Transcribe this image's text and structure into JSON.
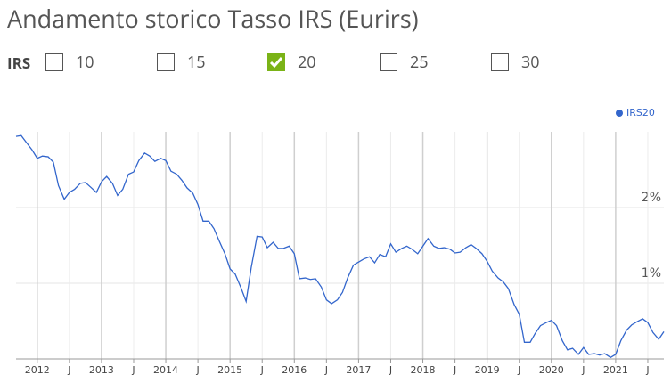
{
  "page": {
    "title": "Andamento storico Tasso IRS (Eurirs)",
    "selector_label": "IRS",
    "options": [
      {
        "label": "10",
        "checked": false
      },
      {
        "label": "15",
        "checked": false
      },
      {
        "label": "20",
        "checked": true
      },
      {
        "label": "25",
        "checked": false
      },
      {
        "label": "30",
        "checked": false
      }
    ]
  },
  "chart_data": {
    "type": "line",
    "grid": true,
    "legend": "top-right",
    "x": [
      2011.67,
      2011.75,
      2011.83,
      2011.92,
      2012.0,
      2012.08,
      2012.17,
      2012.25,
      2012.33,
      2012.42,
      2012.5,
      2012.58,
      2012.67,
      2012.75,
      2012.83,
      2012.92,
      2013.0,
      2013.08,
      2013.17,
      2013.25,
      2013.33,
      2013.42,
      2013.5,
      2013.58,
      2013.67,
      2013.75,
      2013.83,
      2013.92,
      2014.0,
      2014.08,
      2014.17,
      2014.25,
      2014.33,
      2014.42,
      2014.5,
      2014.58,
      2014.67,
      2014.75,
      2014.83,
      2014.92,
      2015.0,
      2015.08,
      2015.17,
      2015.25,
      2015.33,
      2015.42,
      2015.5,
      2015.58,
      2015.67,
      2015.75,
      2015.83,
      2015.92,
      2016.0,
      2016.08,
      2016.17,
      2016.25,
      2016.33,
      2016.42,
      2016.5,
      2016.58,
      2016.67,
      2016.75,
      2016.83,
      2016.92,
      2017.0,
      2017.08,
      2017.17,
      2017.25,
      2017.33,
      2017.42,
      2017.5,
      2017.58,
      2017.67,
      2017.75,
      2017.83,
      2017.92,
      2018.0,
      2018.08,
      2018.17,
      2018.25,
      2018.33,
      2018.42,
      2018.5,
      2018.58,
      2018.67,
      2018.75,
      2018.83,
      2018.92,
      2019.0,
      2019.08,
      2019.17,
      2019.25,
      2019.33,
      2019.42,
      2019.5,
      2019.58,
      2019.67,
      2019.75,
      2019.83,
      2019.92,
      2020.0,
      2020.08,
      2020.17,
      2020.25,
      2020.33,
      2020.42,
      2020.5,
      2020.58,
      2020.67,
      2020.75,
      2020.83,
      2020.92,
      2021.0,
      2021.08,
      2021.17,
      2021.25,
      2021.33,
      2021.42,
      2021.5,
      2021.58,
      2021.67,
      2021.75
    ],
    "series": [
      {
        "name": "IRS20",
        "color": "#3366cc",
        "values": [
          2.94,
          2.95,
          2.86,
          2.76,
          2.65,
          2.68,
          2.67,
          2.6,
          2.29,
          2.11,
          2.2,
          2.24,
          2.32,
          2.33,
          2.27,
          2.2,
          2.34,
          2.41,
          2.32,
          2.16,
          2.24,
          2.44,
          2.47,
          2.62,
          2.72,
          2.68,
          2.61,
          2.65,
          2.62,
          2.48,
          2.44,
          2.36,
          2.26,
          2.19,
          2.04,
          1.82,
          1.82,
          1.72,
          1.56,
          1.39,
          1.19,
          1.12,
          0.94,
          0.76,
          1.21,
          1.62,
          1.61,
          1.47,
          1.54,
          1.46,
          1.46,
          1.49,
          1.39,
          1.06,
          1.07,
          1.05,
          1.06,
          0.95,
          0.78,
          0.73,
          0.78,
          0.88,
          1.07,
          1.24,
          1.28,
          1.32,
          1.35,
          1.27,
          1.38,
          1.35,
          1.52,
          1.41,
          1.46,
          1.49,
          1.45,
          1.39,
          1.49,
          1.59,
          1.49,
          1.46,
          1.47,
          1.45,
          1.4,
          1.41,
          1.47,
          1.51,
          1.46,
          1.39,
          1.29,
          1.16,
          1.07,
          1.02,
          0.93,
          0.72,
          0.59,
          0.22,
          0.22,
          0.34,
          0.44,
          0.48,
          0.51,
          0.44,
          0.24,
          0.12,
          0.14,
          0.06,
          0.15,
          0.06,
          0.07,
          0.05,
          0.07,
          0.02,
          0.06,
          0.24,
          0.38,
          0.45,
          0.49,
          0.53,
          0.48,
          0.35,
          0.26,
          0.36
        ]
      }
    ],
    "xlim": [
      2011.67,
      2021.75
    ],
    "xticks": [
      {
        "value": 2012,
        "label": "2012"
      },
      {
        "value": 2012.5,
        "label": "J"
      },
      {
        "value": 2013,
        "label": "2013"
      },
      {
        "value": 2013.5,
        "label": "J"
      },
      {
        "value": 2014,
        "label": "2014"
      },
      {
        "value": 2014.5,
        "label": "J"
      },
      {
        "value": 2015,
        "label": "2015"
      },
      {
        "value": 2015.5,
        "label": "J"
      },
      {
        "value": 2016,
        "label": "2016"
      },
      {
        "value": 2016.5,
        "label": "J"
      },
      {
        "value": 2017,
        "label": "2017"
      },
      {
        "value": 2017.5,
        "label": "J"
      },
      {
        "value": 2018,
        "label": "2018"
      },
      {
        "value": 2018.5,
        "label": "J"
      },
      {
        "value": 2019,
        "label": "2019"
      },
      {
        "value": 2019.5,
        "label": "J"
      },
      {
        "value": 2020,
        "label": "2020"
      },
      {
        "value": 2020.5,
        "label": "J"
      },
      {
        "value": 2021,
        "label": "2021"
      },
      {
        "value": 2021.5,
        "label": "J"
      }
    ],
    "ylim": [
      0,
      3
    ],
    "yticks": [
      {
        "value": 1,
        "label": "1%"
      },
      {
        "value": 2,
        "label": "2%"
      }
    ]
  }
}
